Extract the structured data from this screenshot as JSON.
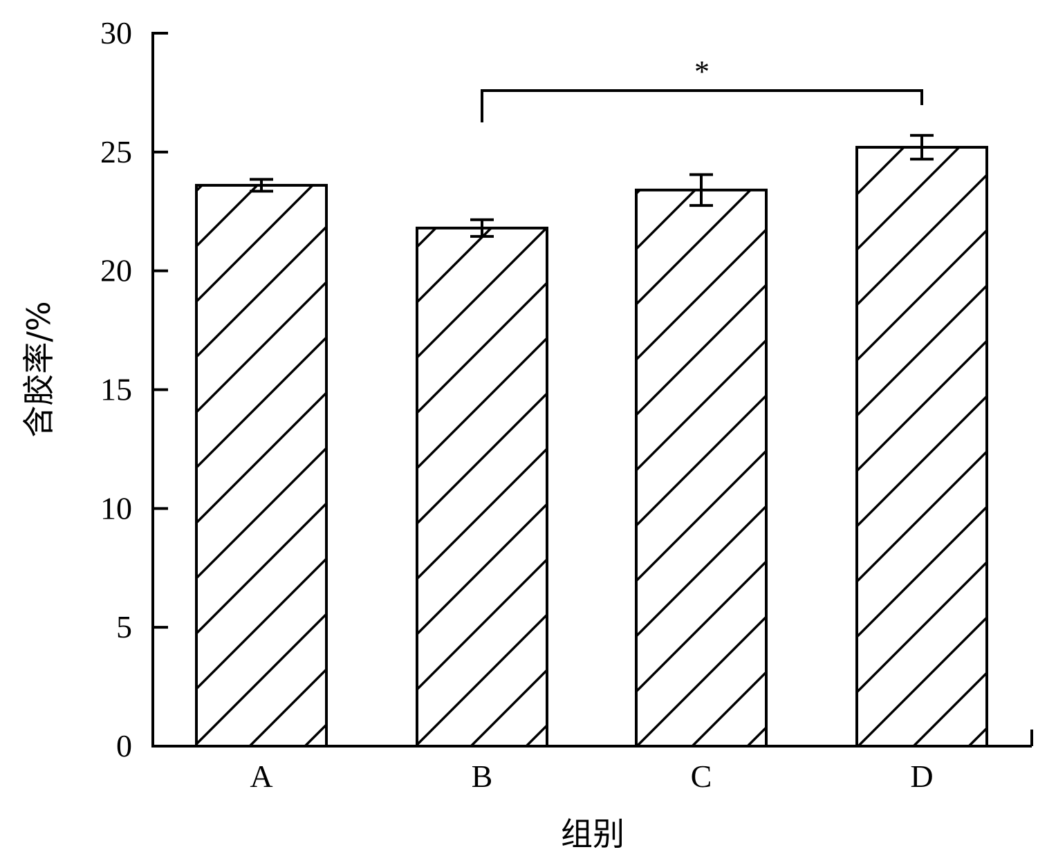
{
  "chart_data": {
    "type": "bar",
    "categories": [
      "A",
      "B",
      "C",
      "D"
    ],
    "values": [
      23.6,
      21.8,
      23.4,
      25.2
    ],
    "error": [
      0.25,
      0.35,
      0.65,
      0.5
    ],
    "title": "",
    "xlabel": "组别",
    "ylabel": "含胶率/%",
    "ylim": [
      0,
      30
    ],
    "yticks": [
      0,
      5,
      10,
      15,
      20,
      25,
      30
    ],
    "ytick_labels": [
      "0",
      "5",
      "10",
      "15",
      "20",
      "25",
      "30"
    ],
    "bar_fill": "hatched",
    "grid": false,
    "legend": "none",
    "significance": [
      {
        "from": "B",
        "to": "D",
        "label": "*"
      }
    ],
    "colors": {
      "bar_edge": "#000000",
      "hatch": "#000000",
      "background": "#ffffff"
    }
  }
}
